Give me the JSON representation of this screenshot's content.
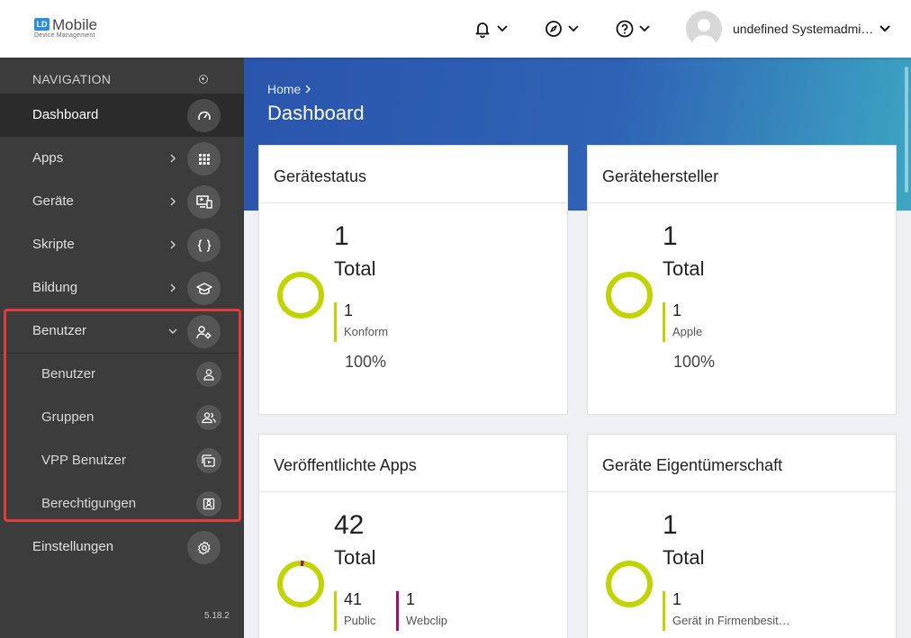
{
  "app": {
    "logo_mark": "LD",
    "logo_name": "Mobile",
    "logo_sub": "Device Management"
  },
  "header": {
    "username": "undefined Systemadmi…",
    "icons": [
      "bell-icon",
      "compass-icon",
      "help-icon",
      "chevron-down-icon"
    ]
  },
  "sidebar": {
    "header_label": "NAVIGATION",
    "items": [
      {
        "label": "Dashboard",
        "icon": "speedometer-icon",
        "active": true
      },
      {
        "label": "Apps",
        "icon": "grid-icon"
      },
      {
        "label": "Geräte",
        "icon": "device-icon"
      },
      {
        "label": "Skripte",
        "icon": "braces-icon"
      },
      {
        "label": "Bildung",
        "icon": "graduation-cap-icon"
      },
      {
        "label": "Benutzer",
        "icon": "user-gear-icon",
        "expanded": true
      },
      {
        "label": "Einstellungen",
        "icon": "gear-icon"
      }
    ],
    "sub_items": [
      {
        "label": "Benutzer",
        "icon": "user-icon"
      },
      {
        "label": "Gruppen",
        "icon": "users-icon"
      },
      {
        "label": "VPP Benutzer",
        "icon": "vpp-icon"
      },
      {
        "label": "Berechtigungen",
        "icon": "badge-icon"
      }
    ],
    "version": "5.18.2"
  },
  "main": {
    "breadcrumb": "Home",
    "title": "Dashboard",
    "cards": [
      {
        "title": "Gerätestatus",
        "total": "1",
        "total_label": "Total",
        "stats": [
          {
            "value": "1",
            "label": "Konform",
            "color": "#c2d400"
          }
        ],
        "percent": "100%"
      },
      {
        "title": "Gerätehersteller",
        "total": "1",
        "total_label": "Total",
        "stats": [
          {
            "value": "1",
            "label": "Apple",
            "color": "#c2d400"
          }
        ],
        "percent": "100%"
      },
      {
        "title": "Veröffentlichte Apps",
        "total": "42",
        "total_label": "Total",
        "stats": [
          {
            "value": "41",
            "label": "Public",
            "color": "#c2d400"
          },
          {
            "value": "1",
            "label": "Webclip",
            "color": "#99156b"
          }
        ]
      },
      {
        "title": "Geräte Eigentümerschaft",
        "total": "1",
        "total_label": "Total",
        "stats": [
          {
            "value": "1",
            "label": "Gerät in Firmenbesit…",
            "color": "#c2d400"
          }
        ]
      }
    ]
  },
  "colors": {
    "accent_green": "#c2d400",
    "accent_purple": "#99156b",
    "highlight": "#e03c3c"
  }
}
